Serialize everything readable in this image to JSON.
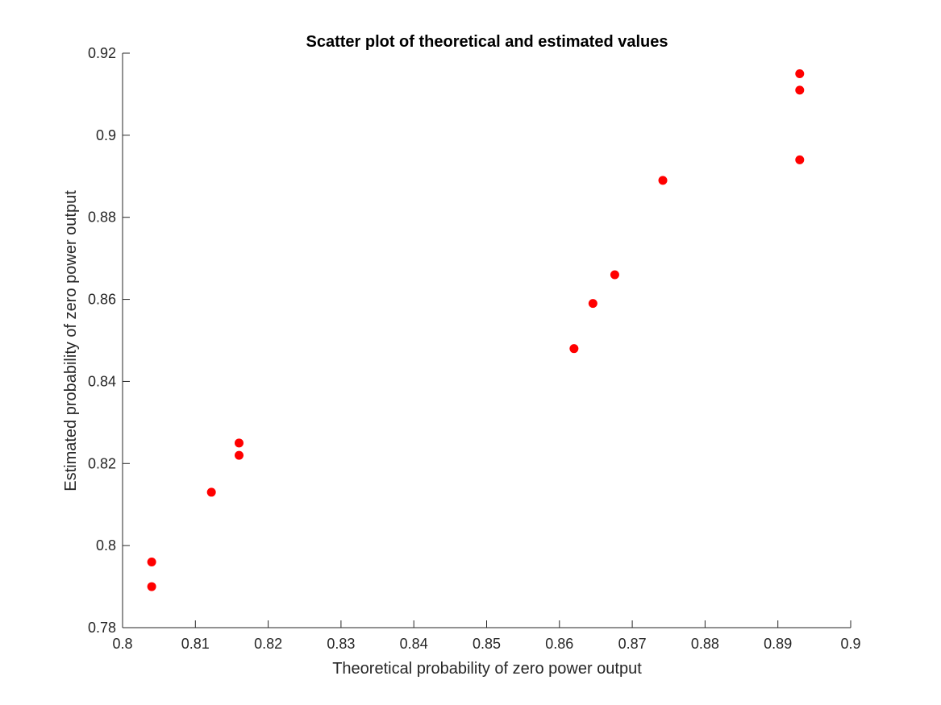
{
  "chart_data": {
    "type": "scatter",
    "title": "Scatter plot of theoretical and estimated values",
    "xlabel": "Theoretical probability of zero power output",
    "ylabel": "Estimated probability of zero power output",
    "xlim": [
      0.8,
      0.9
    ],
    "ylim": [
      0.78,
      0.92
    ],
    "xticks": [
      "0.8",
      "0.81",
      "0.82",
      "0.83",
      "0.84",
      "0.85",
      "0.86",
      "0.87",
      "0.88",
      "0.89",
      "0.9"
    ],
    "yticks": [
      "0.78",
      "0.8",
      "0.82",
      "0.84",
      "0.86",
      "0.88",
      "0.9",
      "0.92"
    ],
    "grid": false,
    "marker_color": "#ff0000",
    "series": [
      {
        "points": [
          {
            "x": 0.804,
            "y": 0.796
          },
          {
            "x": 0.804,
            "y": 0.79
          },
          {
            "x": 0.8122,
            "y": 0.813
          },
          {
            "x": 0.816,
            "y": 0.825
          },
          {
            "x": 0.816,
            "y": 0.822
          },
          {
            "x": 0.862,
            "y": 0.848
          },
          {
            "x": 0.8646,
            "y": 0.859
          },
          {
            "x": 0.8676,
            "y": 0.866
          },
          {
            "x": 0.8742,
            "y": 0.889
          },
          {
            "x": 0.893,
            "y": 0.915
          },
          {
            "x": 0.893,
            "y": 0.911
          },
          {
            "x": 0.893,
            "y": 0.894
          }
        ]
      }
    ]
  }
}
